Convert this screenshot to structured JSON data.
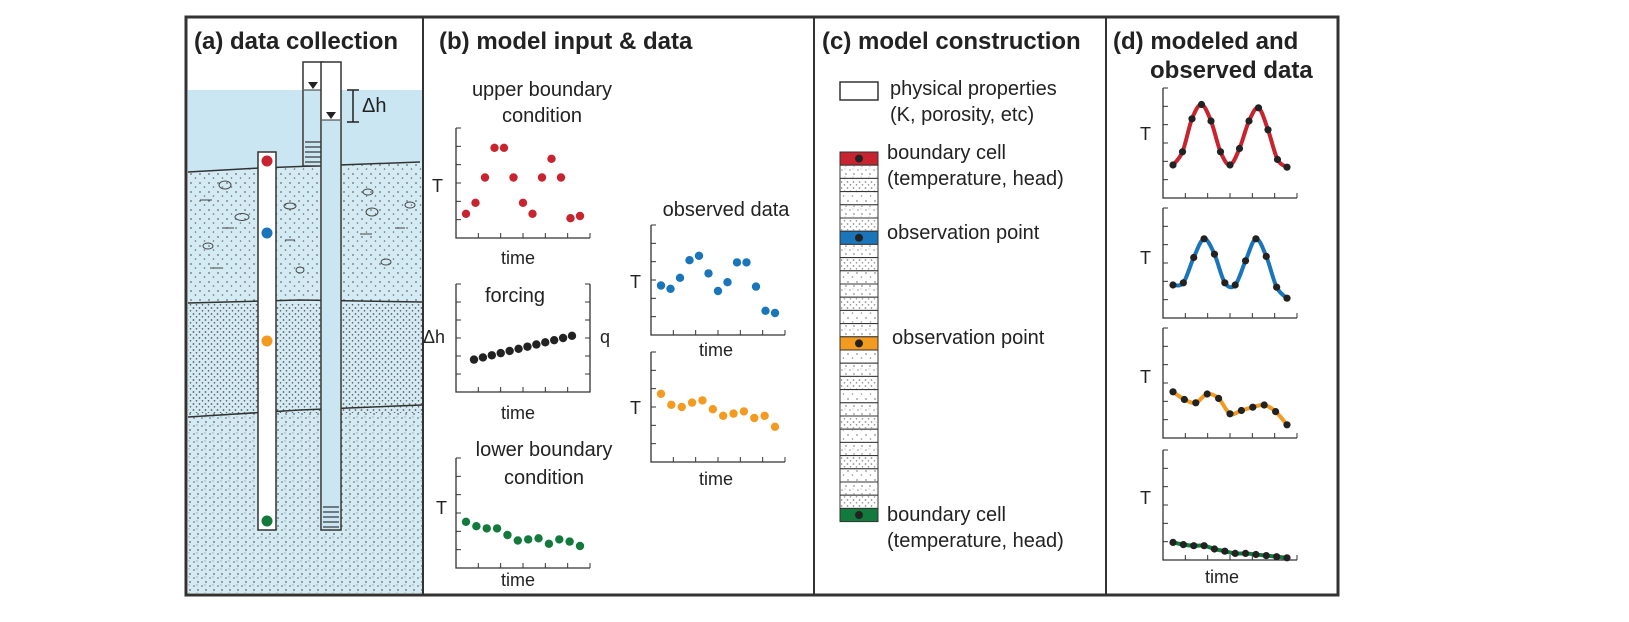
{
  "panels": {
    "a": {
      "title": "(a) data collection",
      "dh_label": "Δh"
    },
    "b": {
      "title": "(b) model input & data",
      "upper_title": [
        "upper boundary",
        "condition"
      ],
      "forcing_title": "forcing",
      "lower_title": [
        "lower boundary",
        "condition"
      ],
      "observed_title": "observed data",
      "time": "time",
      "T": "T",
      "dh": "Δh",
      "q": "q"
    },
    "c": {
      "title": "(c) model construction",
      "legend_physical": [
        "physical properties",
        "(K, porosity, etc)"
      ],
      "boundary_top": [
        "boundary cell",
        "(temperature, head)"
      ],
      "observation_1": "observation point",
      "observation_2": "observation point",
      "boundary_bottom": [
        "boundary cell",
        "(temperature, head)"
      ]
    },
    "d": {
      "title": [
        "(d) modeled and",
        "observed data"
      ],
      "T": "T",
      "time": "time"
    }
  },
  "colors": {
    "red": "#c8242f",
    "blue": "#1a75bb",
    "orange": "#f39a21",
    "green": "#127a3c",
    "black": "#222222",
    "water": "#c9e6f2",
    "sediment": "#d5ebf4"
  },
  "chart_data": [
    {
      "type": "scatter",
      "series": "upper boundary condition",
      "color": "red",
      "values": [
        0.22,
        0.32,
        0.55,
        0.82,
        0.82,
        0.55,
        0.32,
        0.22,
        0.55,
        0.72,
        0.55,
        0.18,
        0.2
      ]
    },
    {
      "type": "scatter",
      "series": "forcing",
      "color": "black",
      "values": [
        0.3,
        0.32,
        0.34,
        0.36,
        0.38,
        0.4,
        0.42,
        0.44,
        0.46,
        0.48,
        0.5,
        0.52
      ]
    },
    {
      "type": "scatter",
      "series": "lower boundary condition",
      "color": "green",
      "values": [
        0.42,
        0.38,
        0.36,
        0.36,
        0.3,
        0.25,
        0.26,
        0.27,
        0.22,
        0.26,
        0.24,
        0.2
      ]
    },
    {
      "type": "scatter",
      "series": "observed data 1",
      "color": "blue",
      "values": [
        0.45,
        0.42,
        0.52,
        0.68,
        0.72,
        0.56,
        0.4,
        0.48,
        0.66,
        0.66,
        0.44,
        0.22,
        0.2
      ]
    },
    {
      "type": "scatter",
      "series": "observed data 2",
      "color": "orange",
      "values": [
        0.62,
        0.52,
        0.5,
        0.54,
        0.56,
        0.48,
        0.42,
        0.44,
        0.46,
        0.4,
        0.42,
        0.32
      ]
    },
    {
      "type": "line",
      "series": "modeled vs observed (red)",
      "color": "red",
      "values": [
        0.3,
        0.42,
        0.72,
        0.85,
        0.7,
        0.42,
        0.3,
        0.45,
        0.7,
        0.82,
        0.62,
        0.35,
        0.28
      ]
    },
    {
      "type": "line",
      "series": "modeled vs observed (blue)",
      "color": "blue",
      "values": [
        0.3,
        0.32,
        0.55,
        0.72,
        0.58,
        0.32,
        0.3,
        0.52,
        0.72,
        0.56,
        0.28,
        0.18
      ]
    },
    {
      "type": "line",
      "series": "modeled vs observed (orange)",
      "color": "orange",
      "values": [
        0.42,
        0.35,
        0.32,
        0.4,
        0.36,
        0.22,
        0.25,
        0.28,
        0.3,
        0.24,
        0.12
      ]
    },
    {
      "type": "line",
      "series": "modeled vs observed (green)",
      "color": "green",
      "values": [
        0.16,
        0.14,
        0.13,
        0.13,
        0.1,
        0.08,
        0.06,
        0.06,
        0.05,
        0.04,
        0.03,
        0.02
      ]
    }
  ]
}
